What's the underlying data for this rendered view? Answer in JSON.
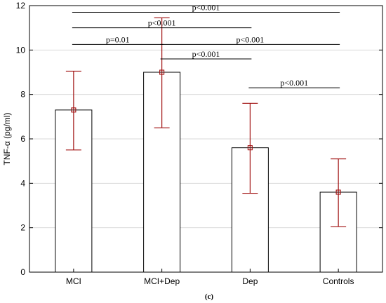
{
  "chart_data": {
    "type": "bar",
    "ylabel": "TNF-α (pg/ml)",
    "caption": "(c)",
    "ylim": [
      0,
      12
    ],
    "yticks": [
      0,
      2,
      4,
      6,
      8,
      10,
      12
    ],
    "ytick_labels": [
      "0",
      "2",
      "4",
      "6",
      "8",
      "10",
      "12"
    ],
    "grid": true,
    "categories": [
      "MCI",
      "MCI+Dep",
      "Dep",
      "Controls"
    ],
    "values": [
      7.3,
      9.0,
      5.6,
      3.6
    ],
    "error_low": [
      5.5,
      6.5,
      3.55,
      2.05
    ],
    "error_high": [
      9.05,
      11.45,
      7.6,
      5.1
    ],
    "error_color": "#a01010",
    "comparisons": [
      {
        "from": 0,
        "to": 3,
        "y": 11.7,
        "label": "p<0.001"
      },
      {
        "from": 0,
        "to": 2,
        "y": 11.0,
        "label": "p<0.001"
      },
      {
        "from": 0,
        "to": 1,
        "y": 10.25,
        "label": "p=0.01"
      },
      {
        "from": 1,
        "to": 3,
        "y": 10.25,
        "label": "p<0.001"
      },
      {
        "from": 1,
        "to": 2,
        "y": 9.6,
        "label": "p<0.001"
      },
      {
        "from": 2,
        "to": 3,
        "y": 8.3,
        "label": "p<0.001"
      }
    ]
  }
}
